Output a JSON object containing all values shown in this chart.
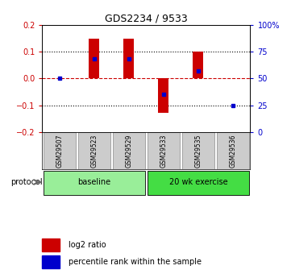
{
  "title": "GDS2234 / 9533",
  "samples": [
    "GSM29507",
    "GSM29523",
    "GSM29529",
    "GSM29533",
    "GSM29535",
    "GSM29536"
  ],
  "log2_ratio": [
    0.0,
    0.15,
    0.15,
    -0.13,
    0.1,
    0.002
  ],
  "percentile_rank": [
    50,
    68,
    68,
    35,
    57,
    25
  ],
  "groups": [
    {
      "label": "baseline",
      "samples": [
        0,
        1,
        2
      ],
      "color": "#99ee99"
    },
    {
      "label": "20 wk exercise",
      "samples": [
        3,
        4,
        5
      ],
      "color": "#44dd44"
    }
  ],
  "ylim": [
    -0.2,
    0.2
  ],
  "right_ylim": [
    0,
    100
  ],
  "bar_color": "#cc0000",
  "dot_color": "#0000cc",
  "bg_color": "#ffffff",
  "plot_bg": "#ffffff",
  "left_axis_color": "#cc0000",
  "right_axis_color": "#0000cc",
  "dashed_line_color": "#cc0000",
  "label_log2": "log2 ratio",
  "label_pct": "percentile rank within the sample",
  "protocol_label": "protocol",
  "bar_width": 0.3,
  "sample_box_color": "#cccccc",
  "yticks_left": [
    -0.2,
    -0.1,
    0.0,
    0.1,
    0.2
  ],
  "yticks_right": [
    0,
    25,
    50,
    75,
    100
  ],
  "ytick_labels_right": [
    "0",
    "25",
    "50",
    "75",
    "100%"
  ]
}
